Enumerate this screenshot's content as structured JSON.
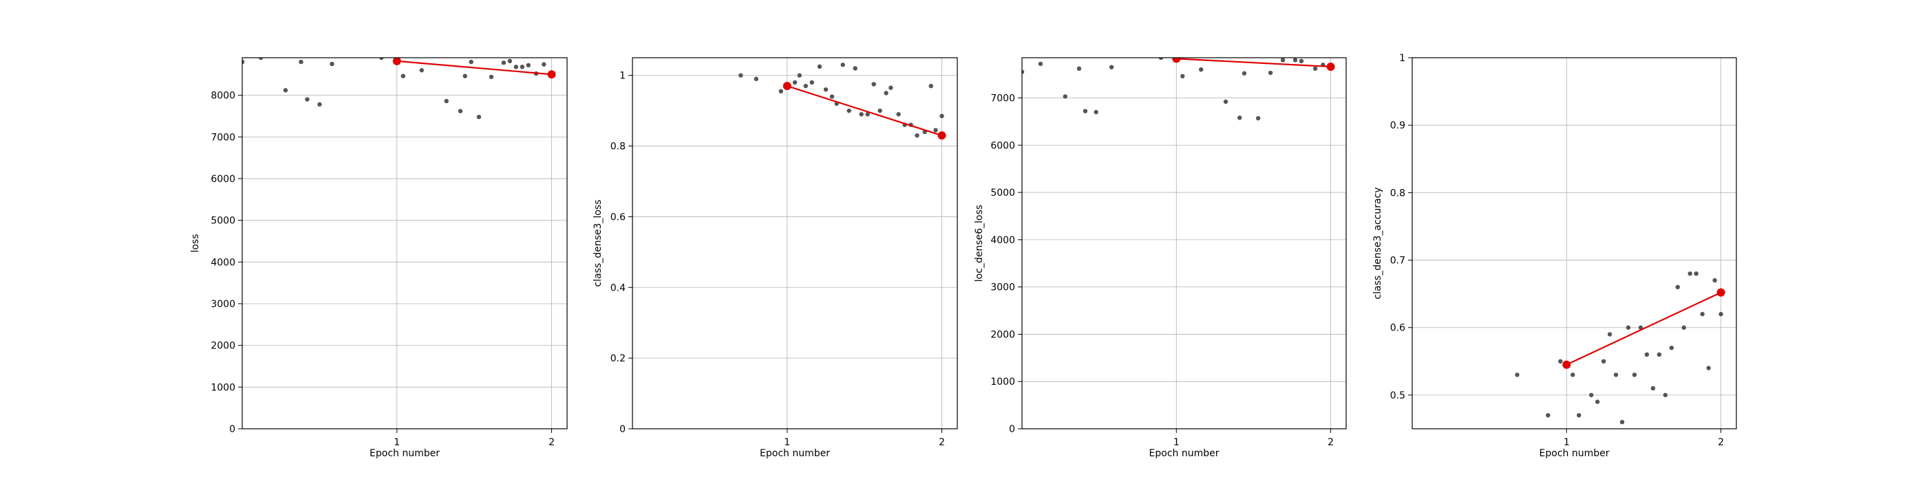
{
  "chart_data": [
    {
      "type": "scatter",
      "xlabel": "Epoch number",
      "ylabel": "loss",
      "xlim": [
        0.0,
        2.1
      ],
      "ylim": [
        0,
        8900
      ],
      "xticks": [
        1,
        2
      ],
      "yticks": [
        0,
        1000,
        2000,
        3000,
        4000,
        5000,
        6000,
        7000,
        8000
      ],
      "grid": true,
      "point_color": "#555555",
      "line_color": "#e00000",
      "points": {
        "x": [
          0.0,
          0.12,
          0.28,
          0.38,
          0.42,
          0.5,
          0.58,
          0.9,
          1.04,
          1.16,
          1.32,
          1.41,
          1.44,
          1.48,
          1.53,
          1.61,
          1.69,
          1.73,
          1.77,
          1.81,
          1.85,
          1.9,
          1.95,
          2.0
        ],
        "y": [
          8800,
          8900,
          8120,
          8800,
          7900,
          7780,
          8750,
          8900,
          8460,
          8600,
          7860,
          7620,
          8460,
          8800,
          7480,
          8440,
          8780,
          8820,
          8680,
          8680,
          8720,
          8520,
          8740,
          8500
        ]
      },
      "trend": {
        "x": [
          1,
          2
        ],
        "y": [
          8820,
          8500
        ]
      }
    },
    {
      "type": "scatter",
      "xlabel": "Epoch number",
      "ylabel": "class_dense3_loss",
      "xlim": [
        0.0,
        2.1
      ],
      "ylim": [
        0,
        1.05
      ],
      "xticks": [
        1,
        2
      ],
      "yticks": [
        0.0,
        0.2,
        0.4,
        0.6,
        0.8,
        1.0
      ],
      "grid": true,
      "point_color": "#555555",
      "line_color": "#e00000",
      "points": {
        "x": [
          0.7,
          0.8,
          0.96,
          1.05,
          1.08,
          1.12,
          1.16,
          1.21,
          1.25,
          1.29,
          1.32,
          1.36,
          1.4,
          1.44,
          1.48,
          1.52,
          1.56,
          1.6,
          1.64,
          1.67,
          1.72,
          1.76,
          1.8,
          1.84,
          1.89,
          1.93,
          1.96,
          2.0
        ],
        "y": [
          1.0,
          0.99,
          0.955,
          0.98,
          1.0,
          0.97,
          0.98,
          1.025,
          0.96,
          0.94,
          0.92,
          1.03,
          0.9,
          1.02,
          0.89,
          0.89,
          0.975,
          0.9,
          0.95,
          0.965,
          0.89,
          0.86,
          0.86,
          0.83,
          0.84,
          0.97,
          0.845,
          0.885
        ]
      },
      "trend": {
        "x": [
          1,
          2
        ],
        "y": [
          0.97,
          0.83
        ]
      }
    },
    {
      "type": "scatter",
      "xlabel": "Epoch number",
      "ylabel": "loc_dense6_loss",
      "xlim": [
        0.0,
        2.1
      ],
      "ylim": [
        0,
        7850
      ],
      "xticks": [
        1,
        2
      ],
      "yticks": [
        0,
        1000,
        2000,
        3000,
        4000,
        5000,
        6000,
        7000
      ],
      "grid": true,
      "point_color": "#555555",
      "line_color": "#e00000",
      "points": {
        "x": [
          0.0,
          0.12,
          0.28,
          0.37,
          0.41,
          0.48,
          0.58,
          0.9,
          1.04,
          1.16,
          1.32,
          1.41,
          1.44,
          1.53,
          1.61,
          1.69,
          1.77,
          1.81,
          1.9,
          1.95,
          2.0
        ],
        "y": [
          7550,
          7720,
          7030,
          7620,
          6720,
          6700,
          7650,
          7850,
          7460,
          7600,
          6920,
          6580,
          7520,
          6570,
          7530,
          7800,
          7800,
          7780,
          7620,
          7700,
          7660
        ]
      },
      "trend": {
        "x": [
          1,
          2
        ],
        "y": [
          7830,
          7660
        ]
      }
    },
    {
      "type": "scatter",
      "xlabel": "Epoch number",
      "ylabel": "class_dense3_accuracy",
      "xlim": [
        0.0,
        2.1
      ],
      "ylim": [
        0.45,
        1.0
      ],
      "xticks": [
        1,
        2
      ],
      "yticks": [
        0.5,
        0.6,
        0.7,
        0.8,
        0.9,
        1.0
      ],
      "grid": true,
      "point_color": "#555555",
      "line_color": "#e00000",
      "points": {
        "x": [
          0.68,
          0.88,
          0.96,
          1.04,
          1.08,
          1.16,
          1.2,
          1.24,
          1.28,
          1.32,
          1.36,
          1.4,
          1.44,
          1.48,
          1.52,
          1.56,
          1.6,
          1.64,
          1.68,
          1.72,
          1.76,
          1.8,
          1.84,
          1.88,
          1.92,
          1.96,
          2.0
        ],
        "y": [
          0.53,
          0.47,
          0.55,
          0.53,
          0.47,
          0.5,
          0.49,
          0.55,
          0.59,
          0.53,
          0.46,
          0.6,
          0.53,
          0.6,
          0.56,
          0.51,
          0.56,
          0.5,
          0.57,
          0.66,
          0.6,
          0.68,
          0.68,
          0.62,
          0.54,
          0.67,
          0.62
        ]
      },
      "trend": {
        "x": [
          1,
          2
        ],
        "y": [
          0.545,
          0.652
        ]
      }
    }
  ]
}
